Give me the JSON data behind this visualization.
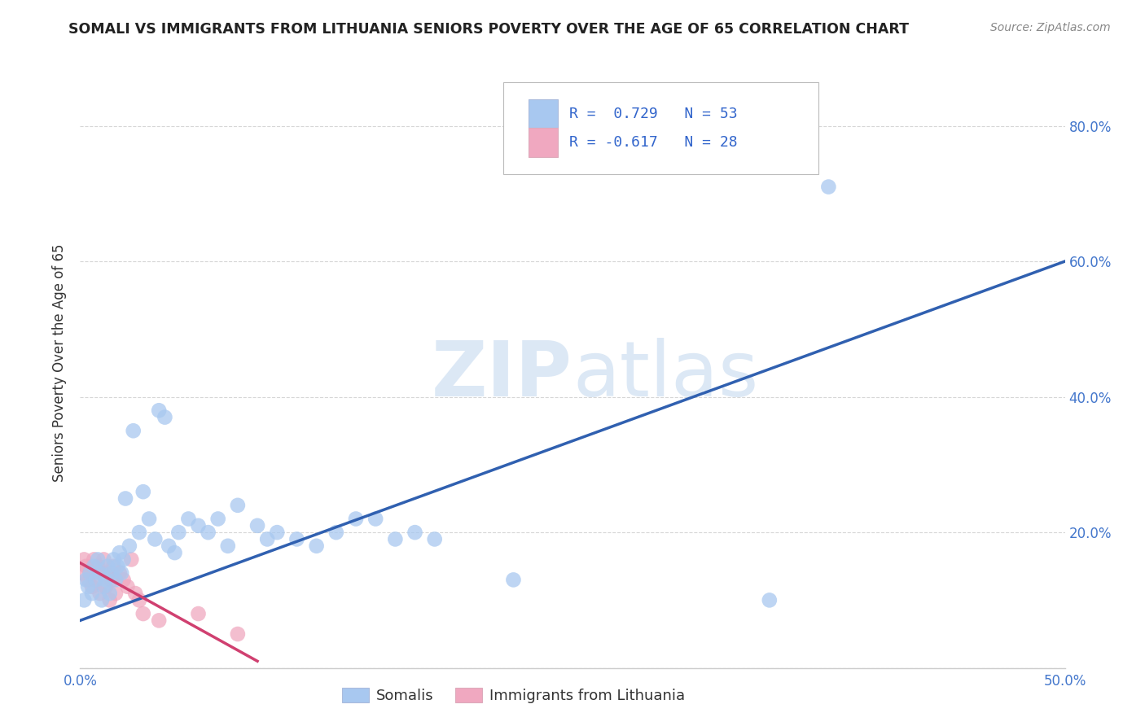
{
  "title": "SOMALI VS IMMIGRANTS FROM LITHUANIA SENIORS POVERTY OVER THE AGE OF 65 CORRELATION CHART",
  "source": "Source: ZipAtlas.com",
  "ylabel": "Seniors Poverty Over the Age of 65",
  "xlim": [
    0.0,
    0.5
  ],
  "ylim": [
    0.0,
    0.9
  ],
  "xticks": [
    0.0,
    0.05,
    0.1,
    0.15,
    0.2,
    0.25,
    0.3,
    0.35,
    0.4,
    0.45,
    0.5
  ],
  "yticks": [
    0.0,
    0.2,
    0.4,
    0.6,
    0.8
  ],
  "xtick_labels": [
    "0.0%",
    "",
    "",
    "",
    "",
    "",
    "",
    "",
    "",
    "",
    "50.0%"
  ],
  "ytick_labels_right": [
    "",
    "20.0%",
    "40.0%",
    "60.0%",
    "80.0%"
  ],
  "somali_R": 0.729,
  "somali_N": 53,
  "lithuania_R": -0.617,
  "lithuania_N": 28,
  "somali_color": "#a8c8f0",
  "somali_line_color": "#3060b0",
  "lithuania_color": "#f0a8c0",
  "lithuania_line_color": "#d04070",
  "background_color": "#ffffff",
  "grid_color": "#cccccc",
  "watermark_color": "#dce8f5",
  "somali_x": [
    0.002,
    0.003,
    0.004,
    0.005,
    0.006,
    0.007,
    0.008,
    0.009,
    0.01,
    0.011,
    0.012,
    0.013,
    0.014,
    0.015,
    0.016,
    0.017,
    0.018,
    0.019,
    0.02,
    0.021,
    0.022,
    0.023,
    0.025,
    0.027,
    0.03,
    0.032,
    0.035,
    0.038,
    0.04,
    0.043,
    0.045,
    0.048,
    0.05,
    0.055,
    0.06,
    0.065,
    0.07,
    0.075,
    0.08,
    0.09,
    0.095,
    0.1,
    0.11,
    0.12,
    0.13,
    0.14,
    0.15,
    0.16,
    0.17,
    0.18,
    0.22,
    0.35,
    0.38
  ],
  "somali_y": [
    0.1,
    0.13,
    0.12,
    0.14,
    0.11,
    0.15,
    0.13,
    0.16,
    0.14,
    0.1,
    0.12,
    0.13,
    0.15,
    0.11,
    0.14,
    0.16,
    0.13,
    0.15,
    0.17,
    0.14,
    0.16,
    0.25,
    0.18,
    0.35,
    0.2,
    0.26,
    0.22,
    0.19,
    0.38,
    0.37,
    0.18,
    0.17,
    0.2,
    0.22,
    0.21,
    0.2,
    0.22,
    0.18,
    0.24,
    0.21,
    0.19,
    0.2,
    0.19,
    0.18,
    0.2,
    0.22,
    0.22,
    0.19,
    0.2,
    0.19,
    0.13,
    0.1,
    0.71
  ],
  "lithuania_x": [
    0.001,
    0.002,
    0.003,
    0.004,
    0.005,
    0.006,
    0.007,
    0.008,
    0.009,
    0.01,
    0.011,
    0.012,
    0.013,
    0.014,
    0.015,
    0.016,
    0.017,
    0.018,
    0.02,
    0.022,
    0.024,
    0.026,
    0.028,
    0.03,
    0.032,
    0.04,
    0.06,
    0.08
  ],
  "lithuania_y": [
    0.14,
    0.16,
    0.15,
    0.13,
    0.14,
    0.12,
    0.16,
    0.13,
    0.15,
    0.11,
    0.14,
    0.16,
    0.12,
    0.14,
    0.1,
    0.13,
    0.15,
    0.11,
    0.14,
    0.13,
    0.12,
    0.16,
    0.11,
    0.1,
    0.08,
    0.07,
    0.08,
    0.05
  ],
  "somali_line_x": [
    0.0,
    0.5
  ],
  "somali_line_y": [
    0.07,
    0.6
  ],
  "lithuania_line_x": [
    0.0,
    0.09
  ],
  "lithuania_line_y": [
    0.155,
    0.01
  ]
}
